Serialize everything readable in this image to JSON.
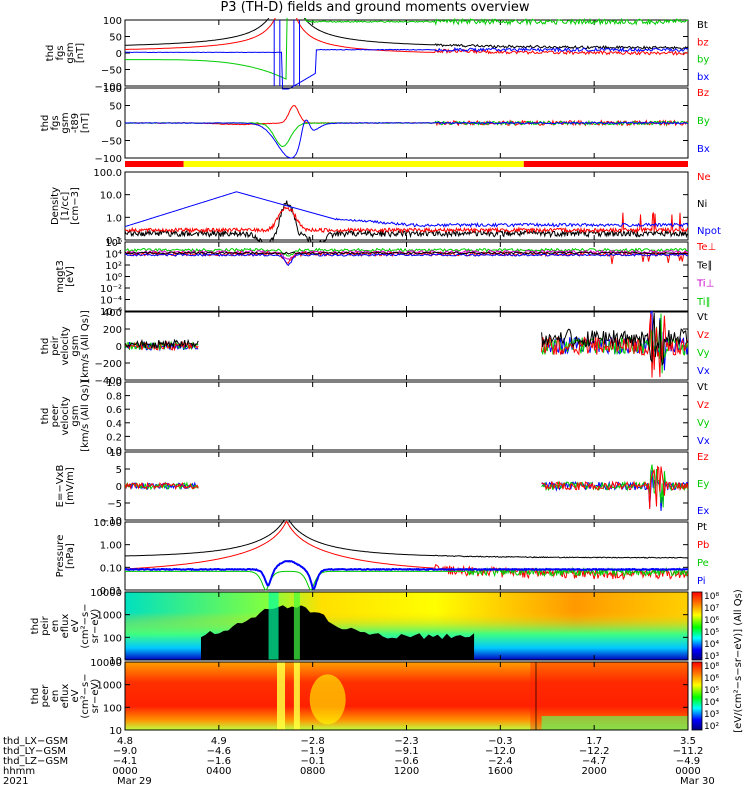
{
  "title": "P3 (TH-D) fields and ground moments overview",
  "chart_data": {
    "type": "line",
    "title": "P3 (TH-D) fields and ground moments overview",
    "panels": [
      {
        "id": "fgs",
        "ylabel": [
          "thd",
          "fgs",
          "gsm",
          "[nT]"
        ],
        "yticks": [
          "100",
          "50",
          "0",
          "−50",
          "−100"
        ],
        "legend": [
          {
            "label": "Bt",
            "color": "#000000"
          },
          {
            "label": "bz",
            "color": "#ff0000"
          },
          {
            "label": "by",
            "color": "#00cc00"
          },
          {
            "label": "bx",
            "color": "#0000ff"
          }
        ]
      },
      {
        "id": "fgs_t89",
        "ylabel": [
          "thd",
          "fgs",
          "gsm",
          "-t89",
          "[nT]"
        ],
        "yticks": [
          "100",
          "50",
          "0",
          "−50",
          "−100"
        ],
        "legend": [
          {
            "label": "Bz",
            "color": "#ff0000"
          },
          {
            "label": "By",
            "color": "#00cc00"
          },
          {
            "label": "Bx",
            "color": "#0000ff"
          }
        ]
      },
      {
        "id": "density",
        "ylabel": [
          "Density",
          "[1/cc]",
          "[cm−3]"
        ],
        "yticks": [
          "100.0",
          "10.0",
          "1.0",
          "0.1"
        ],
        "legend": [
          {
            "label": "Ne",
            "color": "#ff0000"
          },
          {
            "label": "Ni",
            "color": "#000000"
          },
          {
            "label": "Npot",
            "color": "#0000ff"
          }
        ]
      },
      {
        "id": "temp",
        "ylabel": [
          "mqgt3",
          "[eV]"
        ],
        "yticks": [
          "10⁶",
          "10⁴",
          "10²",
          "10⁰",
          "10⁻²",
          "10⁻⁴",
          "10⁻⁶"
        ],
        "legend": [
          {
            "label": "Te⊥",
            "color": "#ff0000"
          },
          {
            "label": "Te∥",
            "color": "#000000"
          },
          {
            "label": "Ti⊥",
            "color": "#cc00cc"
          },
          {
            "label": "Ti∥",
            "color": "#00cc00"
          }
        ]
      },
      {
        "id": "peir_vel",
        "ylabel": [
          "thd",
          "peir",
          "velocity",
          "gsm",
          "[km/s (All Qs)]"
        ],
        "yticks": [
          "400",
          "200",
          "0",
          "−200",
          "−400"
        ],
        "legend": [
          {
            "label": "Vt",
            "color": "#000000"
          },
          {
            "label": "Vz",
            "color": "#ff0000"
          },
          {
            "label": "Vy",
            "color": "#00cc00"
          },
          {
            "label": "Vx",
            "color": "#0000ff"
          }
        ]
      },
      {
        "id": "peer_vel",
        "ylabel": [
          "thd",
          "peer",
          "velocity",
          "gsm",
          "[km/s (All Qs)]"
        ],
        "yticks": [
          "1.0",
          "0.8",
          "0.6",
          "0.4",
          "0.2",
          "0.0"
        ],
        "legend": [
          {
            "label": "Vt",
            "color": "#000000"
          },
          {
            "label": "Vz",
            "color": "#ff0000"
          },
          {
            "label": "Vy",
            "color": "#00cc00"
          },
          {
            "label": "Vx",
            "color": "#0000ff"
          }
        ]
      },
      {
        "id": "efield",
        "ylabel": [
          "E=−VxB",
          "[mV/m]"
        ],
        "yticks": [
          "10",
          "5",
          "0",
          "−5",
          "−10"
        ],
        "legend": [
          {
            "label": "Ez",
            "color": "#ff0000"
          },
          {
            "label": "Ey",
            "color": "#00cc00"
          },
          {
            "label": "Ex",
            "color": "#0000ff"
          }
        ]
      },
      {
        "id": "pressure",
        "ylabel": [
          "Pressure",
          "[nPa]"
        ],
        "yticks": [
          "10.00",
          "1.00",
          "0.10",
          "0.01"
        ],
        "legend": [
          {
            "label": "Pt",
            "color": "#000000"
          },
          {
            "label": "Pb",
            "color": "#ff0000"
          },
          {
            "label": "Pe",
            "color": "#00cc00"
          },
          {
            "label": "Pi",
            "color": "#0000ff"
          }
        ]
      },
      {
        "id": "peir_spec",
        "ylabel": [
          "thd",
          "peir",
          "en",
          "eflux",
          "eV",
          "(cm²−s−",
          "sr−eV)"
        ],
        "yticks": [
          "10000",
          "1000",
          "100",
          "10"
        ],
        "legend": []
      },
      {
        "id": "peer_spec",
        "ylabel": [
          "thd",
          "peer",
          "en",
          "eflux",
          "eV",
          "(cm²−s−",
          "sr−eV)"
        ],
        "yticks": [
          "10000",
          "1000",
          "100",
          "10"
        ],
        "legend": []
      }
    ],
    "colorbar": {
      "label": "[eV/(cm²−s−sr−eV)] (All Qs)",
      "ticks_top": [
        "10⁸",
        "10⁷",
        "10⁶",
        "10⁵",
        "10⁴",
        "10³"
      ],
      "ticks_bottom": [
        "10⁸",
        "10⁶",
        "10⁵",
        "10⁴",
        "10³",
        "10²"
      ]
    },
    "mode_bar": [
      {
        "from": "0000",
        "to": "0230",
        "color": "#ff0000"
      },
      {
        "from": "0230",
        "to": "1700",
        "color": "#ffff00"
      },
      {
        "from": "1700",
        "to": "0000",
        "color": "#ff0000"
      }
    ],
    "xaxis": {
      "row_labels": [
        "thd_LX−GSM",
        "thd_LY−GSM",
        "thd_LZ−GSM",
        "hhmm",
        "2021"
      ],
      "columns": [
        {
          "lx": "4.8",
          "ly": "−9.0",
          "lz": "−4.1",
          "hhmm": "0000",
          "date": "Mar 29"
        },
        {
          "lx": "4.9",
          "ly": "−4.6",
          "lz": "−1.6",
          "hhmm": "0400",
          "date": ""
        },
        {
          "lx": "−2.8",
          "ly": "−1.9",
          "lz": "−0.1",
          "hhmm": "0800",
          "date": ""
        },
        {
          "lx": "−2.3",
          "ly": "−9.1",
          "lz": "−0.6",
          "hhmm": "1200",
          "date": ""
        },
        {
          "lx": "−0.3",
          "ly": "−12.0",
          "lz": "−2.4",
          "hhmm": "1600",
          "date": ""
        },
        {
          "lx": "1.7",
          "ly": "−12.2",
          "lz": "−4.7",
          "hhmm": "2000",
          "date": ""
        },
        {
          "lx": "3.5",
          "ly": "−11.2",
          "lz": "−4.9",
          "hhmm": "0000",
          "date": "Mar 30"
        }
      ]
    }
  }
}
